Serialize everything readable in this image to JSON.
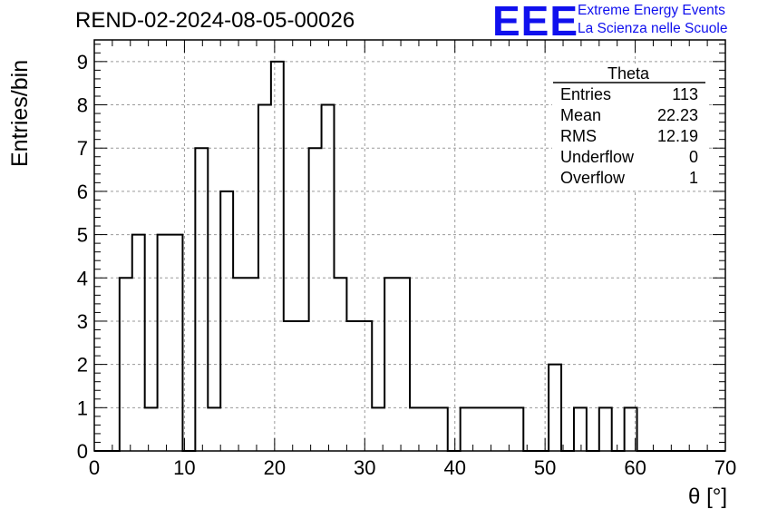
{
  "header": {
    "title": "REND-02-2024-08-05-00026",
    "logo": "EEE",
    "logo_line1": "Extreme Energy Events",
    "logo_line2": "La Scienza nelle Scuole"
  },
  "stats": {
    "name": "Theta",
    "rows": [
      {
        "label": "Entries",
        "value": "113"
      },
      {
        "label": "Mean",
        "value": "22.23"
      },
      {
        "label": "RMS",
        "value": "12.19"
      },
      {
        "label": "Underflow",
        "value": "0"
      },
      {
        "label": "Overflow",
        "value": "1"
      }
    ]
  },
  "chart_data": {
    "type": "bar",
    "histogram": true,
    "bin_width": 1.4,
    "bin_edges_start": 0,
    "values": [
      0,
      0,
      4,
      5,
      1,
      5,
      5,
      0,
      7,
      1,
      6,
      4,
      4,
      8,
      9,
      3,
      3,
      7,
      8,
      4,
      3,
      3,
      1,
      4,
      4,
      1,
      1,
      1,
      0,
      1,
      1,
      1,
      1,
      1,
      0,
      0,
      2,
      0,
      1,
      0,
      1,
      0,
      1,
      0,
      0,
      0,
      0,
      0,
      0,
      0
    ],
    "xlabel": "θ [°]",
    "ylabel": "Entries/bin",
    "xlim": [
      0,
      70
    ],
    "ylim": [
      0,
      9.5
    ],
    "xticks": [
      "0",
      "10",
      "20",
      "30",
      "40",
      "50",
      "60",
      "70"
    ],
    "yticks": [
      "0",
      "1",
      "2",
      "3",
      "4",
      "5",
      "6",
      "7",
      "8",
      "9"
    ],
    "grid": true,
    "colors": {
      "line": "#000000",
      "grid": "#9a9a9a",
      "logo": "#1010ee"
    }
  }
}
